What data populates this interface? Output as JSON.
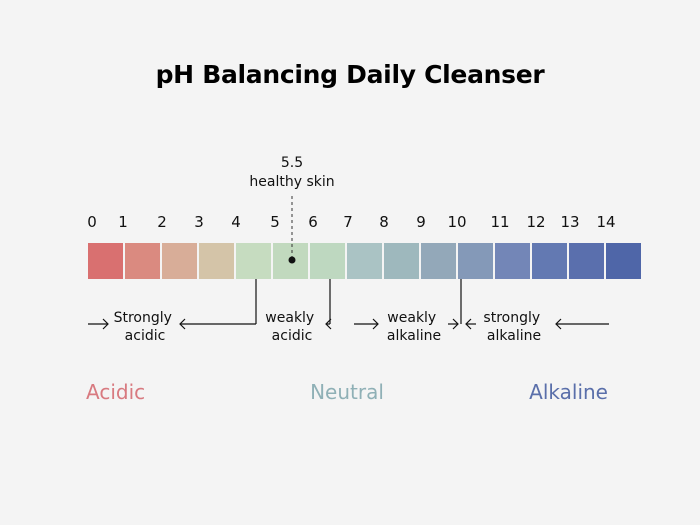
{
  "title": "pH Balancing Daily Cleanser",
  "marker": {
    "value": "5.5",
    "label": "healthy skin",
    "position": 5.5
  },
  "scale": {
    "ticks": [
      "0",
      "1",
      "2",
      "3",
      "4",
      "5",
      "6",
      "7",
      "8",
      "9",
      "10",
      "11",
      "12",
      "13",
      "14"
    ],
    "colors": [
      "#d97070",
      "#da8a80",
      "#d8ad98",
      "#d4c4a8",
      "#c6dcc0",
      "#c1d9be",
      "#bed8c0",
      "#aac3c4",
      "#9eb8bd",
      "#93a8b9",
      "#8499b8",
      "#7386b7",
      "#6379b2",
      "#5a6fad",
      "#4f66a8"
    ]
  },
  "ranges": [
    {
      "label": [
        "Strongly",
        "acidic"
      ],
      "color": "#111111"
    },
    {
      "label": [
        "weakly",
        "acidic"
      ],
      "color": "#c9ddc8"
    },
    {
      "label": [
        "weakly",
        "alkaline"
      ],
      "color": "#111111"
    },
    {
      "label": [
        "strongly",
        "alkaline"
      ],
      "color": "#111111"
    }
  ],
  "zones": [
    {
      "label": "Acidic",
      "color": "#d87a80"
    },
    {
      "label": "Neutral",
      "color": "#8fb0b6"
    },
    {
      "label": "Alkaline",
      "color": "#5a6faa"
    }
  ]
}
